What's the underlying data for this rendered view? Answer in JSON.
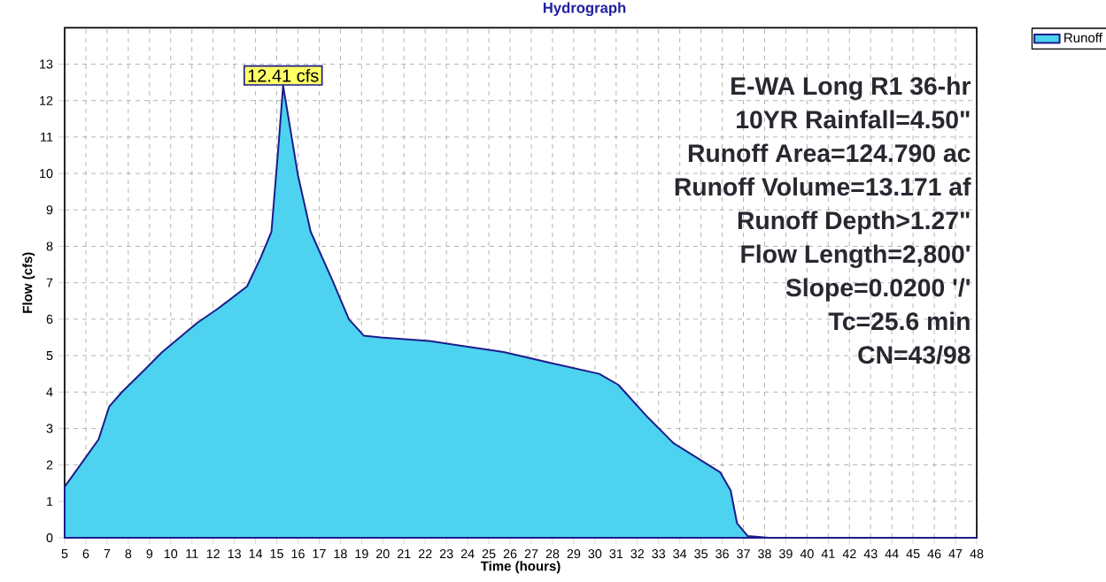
{
  "chart_data": {
    "type": "area",
    "title": "Hydrograph",
    "xlabel": "Time  (hours)",
    "ylabel": "Flow  (cfs)",
    "x": [
      5,
      6.6,
      7.1,
      7.7,
      8.75,
      9.6,
      11.25,
      12.25,
      13.6,
      14.25,
      14.75,
      15.1,
      15.3,
      16.0,
      16.6,
      17.6,
      18.4,
      19.1,
      19.9,
      22.2,
      25.7,
      27.9,
      30.2,
      31.1,
      32.5,
      33.7,
      34.8,
      35.9,
      36.4,
      36.7,
      37.2,
      38.2,
      48
    ],
    "series": [
      {
        "name": "Runoff",
        "color": "#4dd2f0",
        "values": [
          1.4,
          2.7,
          3.6,
          4.0,
          4.6,
          5.1,
          5.9,
          6.3,
          6.9,
          7.7,
          8.4,
          10.9,
          12.41,
          9.95,
          8.4,
          7.1,
          6.0,
          5.55,
          5.5,
          5.4,
          5.1,
          4.8,
          4.5,
          4.2,
          3.3,
          2.6,
          2.2,
          1.8,
          1.3,
          0.4,
          0.05,
          0,
          0
        ]
      }
    ],
    "xlim": [
      5,
      48
    ],
    "xticks": [
      5,
      6,
      7,
      8,
      9,
      10,
      11,
      12,
      13,
      14,
      15,
      16,
      17,
      18,
      19,
      20,
      21,
      22,
      23,
      24,
      25,
      26,
      27,
      28,
      29,
      30,
      31,
      32,
      33,
      34,
      35,
      36,
      37,
      38,
      39,
      40,
      41,
      42,
      43,
      44,
      45,
      46,
      47,
      48
    ],
    "ylim": [
      0,
      14
    ],
    "yticks": [
      0,
      1,
      2,
      3,
      4,
      5,
      6,
      7,
      8,
      9,
      10,
      11,
      12,
      13
    ],
    "grid": true,
    "legend": "top right",
    "line_style": "dashed",
    "annotations": [
      {
        "text": "12.41 cfs",
        "x": 15.3,
        "y": 12.41
      },
      "E-WA Long R1 36-hr",
      "10YR Rainfall=4.50\"",
      "Runoff Area=124.790 ac",
      "Runoff Volume=13.171 af",
      "Runoff Depth>1.27\"",
      "Flow Length=2,800'",
      "Slope=0.0200 '/'",
      "Tc=25.6 min",
      "CN=43/98"
    ]
  }
}
